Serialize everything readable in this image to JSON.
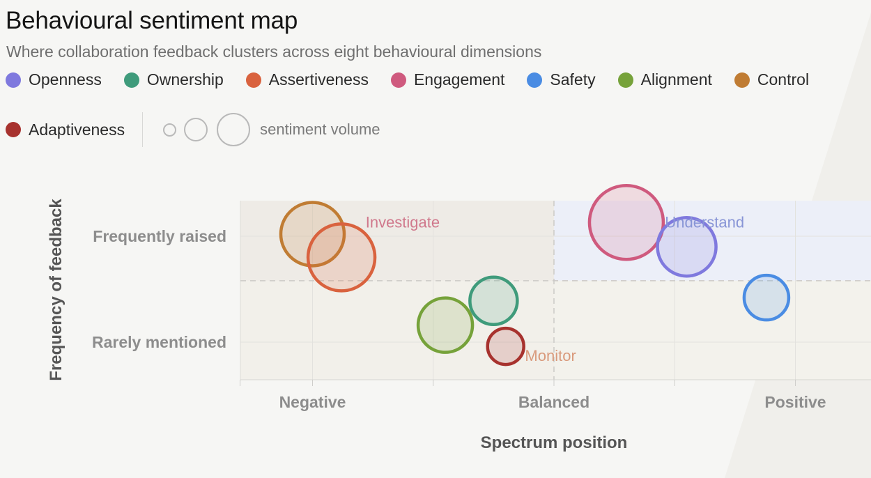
{
  "title": "Behavioural sentiment map",
  "subtitle": "Where collaboration feedback clusters across eight behavioural dimensions",
  "legend": {
    "items": [
      {
        "label": "Openness",
        "color": "#7f79de"
      },
      {
        "label": "Ownership",
        "color": "#3f9b7b"
      },
      {
        "label": "Assertiveness",
        "color": "#d9623e"
      },
      {
        "label": "Engagement",
        "color": "#cf5a7e"
      },
      {
        "label": "Safety",
        "color": "#4a8ce3"
      },
      {
        "label": "Alignment",
        "color": "#76a23a"
      },
      {
        "label": "Control",
        "color": "#c07c33"
      },
      {
        "label": "Adaptiveness",
        "color": "#a7322e"
      }
    ],
    "size_label": "sentiment volume"
  },
  "chart_data": {
    "type": "scatter",
    "xlabel": "Spectrum position",
    "ylabel": "Frequency of feedback",
    "x_ticks": [
      {
        "value": -1,
        "label": "Negative"
      },
      {
        "value": 0,
        "label": "Balanced"
      },
      {
        "value": 1,
        "label": "Positive"
      }
    ],
    "y_ticks": [
      {
        "value": 1,
        "label": "Frequently raised"
      },
      {
        "value": 0,
        "label": "Rarely mentioned"
      }
    ],
    "xlim": [
      -1.3,
      1.3
    ],
    "ylim": [
      -0.35,
      1.33
    ],
    "threshold_x": 0,
    "threshold_y": 0.58,
    "quadrant_labels": [
      {
        "label": "Investigate",
        "x": -0.78,
        "y": 1.12,
        "color": "#d0788c"
      },
      {
        "label": "Understand",
        "x": 0.46,
        "y": 1.12,
        "color": "#8895d6"
      },
      {
        "label": "Monitor",
        "x": -0.12,
        "y": -0.14,
        "color": "#d99a7c"
      }
    ],
    "points": [
      {
        "name": "Control",
        "x": -1.0,
        "y": 1.02,
        "size": 95,
        "color": "#c07c33"
      },
      {
        "name": "Assertiveness",
        "x": -0.88,
        "y": 0.8,
        "size": 100,
        "color": "#d9623e"
      },
      {
        "name": "Engagement",
        "x": 0.3,
        "y": 1.13,
        "size": 110,
        "color": "#cf5a7e"
      },
      {
        "name": "Openness",
        "x": 0.55,
        "y": 0.9,
        "size": 88,
        "color": "#7f79de"
      },
      {
        "name": "Safety",
        "x": 0.88,
        "y": 0.42,
        "size": 68,
        "color": "#4a8ce3"
      },
      {
        "name": "Ownership",
        "x": -0.25,
        "y": 0.39,
        "size": 72,
        "color": "#3f9b7b"
      },
      {
        "name": "Alignment",
        "x": -0.45,
        "y": 0.16,
        "size": 82,
        "color": "#76a23a"
      },
      {
        "name": "Adaptiveness",
        "x": -0.2,
        "y": -0.04,
        "size": 56,
        "color": "#a7322e"
      }
    ]
  }
}
